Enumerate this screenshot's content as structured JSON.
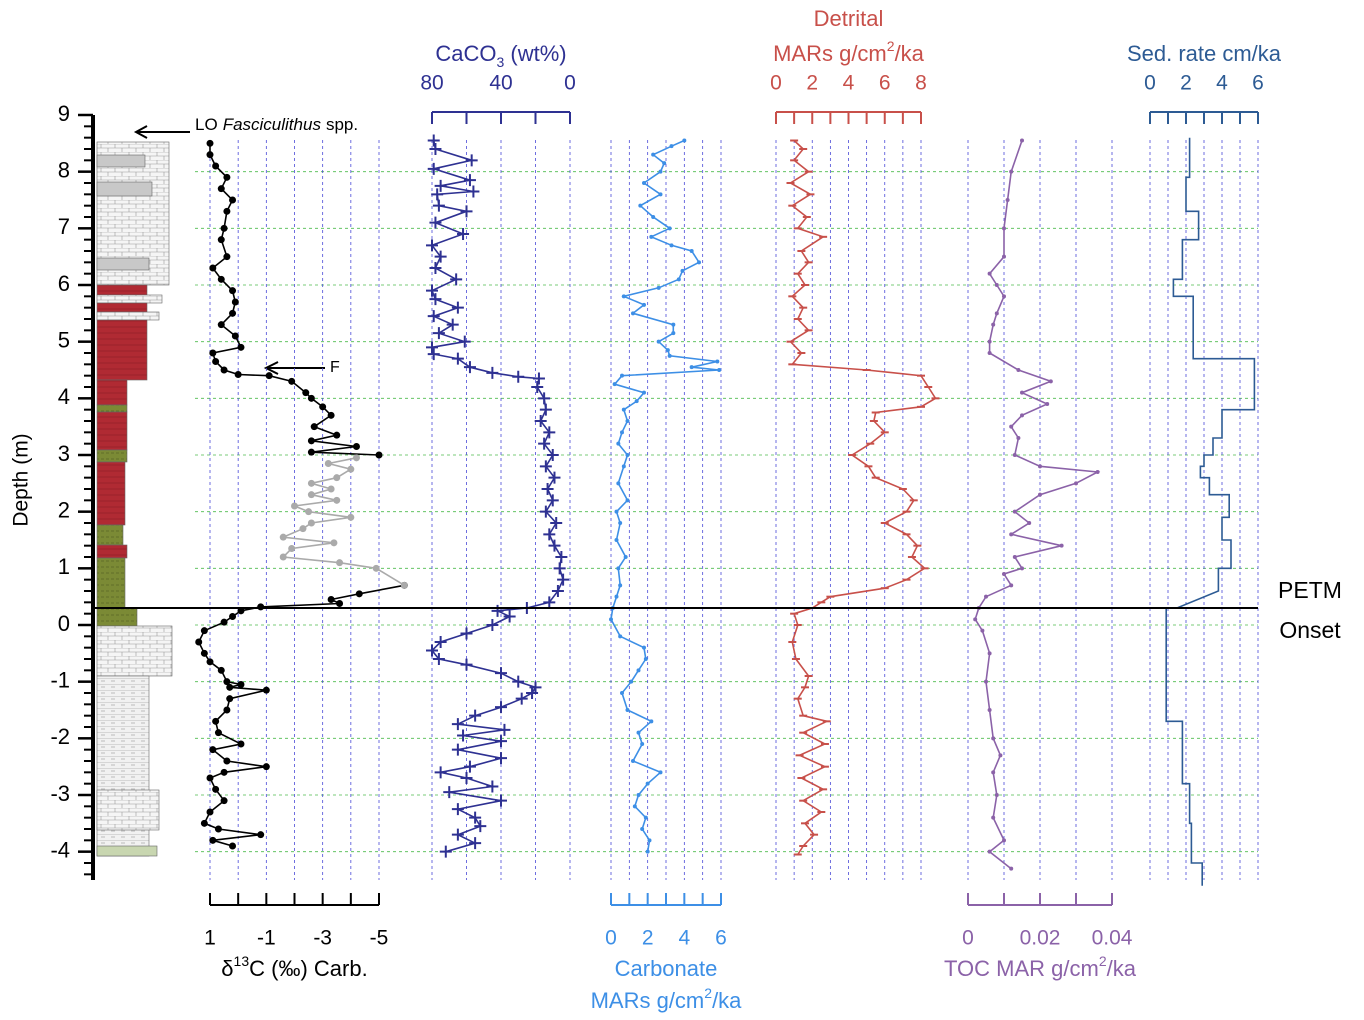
{
  "chart_data": [
    {
      "type": "line",
      "color": "#000000",
      "title": [
        [
          "δ",
          {
            "text": "13",
            "script": "super"
          },
          "C (‰) Carb."
        ]
      ],
      "ylabel": "Depth (m)",
      "ylim": [
        -4.5,
        9
      ],
      "yticks": [
        -4,
        -3,
        -2,
        -1,
        0,
        1,
        2,
        3,
        4,
        5,
        6,
        7,
        8,
        9
      ],
      "xlim": [
        1,
        -5
      ],
      "xticks": [
        1,
        -1,
        -3,
        -5
      ],
      "axis_position": "bottom",
      "grid": true,
      "annotations": {
        "lo": [
          "LO",
          "Fasciculithus",
          "spp."
        ],
        "f": "F",
        "onset": {
          "depth": 0.3,
          "label": [
            "PETM",
            "Onset"
          ]
        }
      },
      "series": [
        {
          "color": "#000000",
          "marker": "circle",
          "depth": [
            8.5,
            8.3,
            8.1,
            7.9,
            7.7,
            7.5,
            7.3,
            7.0,
            6.8,
            6.5,
            6.3,
            6.1,
            5.9,
            5.7,
            5.5,
            5.3,
            5.1,
            4.9,
            4.8,
            4.65,
            4.5,
            4.42,
            4.4,
            4.3,
            4.1,
            4.0,
            3.85,
            3.7,
            3.5,
            3.35,
            3.25,
            3.15,
            3.05,
            3.0,
            null,
            0.7,
            0.55,
            0.45,
            0.38,
            0.32,
            0.25,
            0.15,
            0.05,
            -0.1,
            -0.3,
            -0.5,
            -0.65,
            -0.8,
            -1.0,
            -1.05,
            -1.1,
            -1.15,
            -1.3,
            -1.5,
            -1.7,
            -1.9,
            -2.1,
            -2.2,
            -2.4,
            -2.5,
            -2.6,
            -2.7,
            -2.9,
            -3.1,
            -3.3,
            -3.5,
            -3.6,
            -3.7,
            -3.8,
            -3.9
          ],
          "values": [
            1.0,
            1.0,
            0.8,
            0.4,
            0.6,
            0.2,
            0.4,
            0.5,
            0.6,
            0.4,
            0.9,
            0.6,
            0.2,
            0.1,
            0.2,
            0.6,
            0.1,
            -0.1,
            0.9,
            0.8,
            0.5,
            0.0,
            -1.1,
            -1.9,
            -2.4,
            -2.6,
            -3.0,
            -3.3,
            -2.7,
            -3.5,
            -2.6,
            -4.2,
            -2.6,
            -5.0,
            null,
            -5.9,
            -4.3,
            -3.3,
            -3.6,
            -0.8,
            -0.1,
            0.2,
            0.5,
            1.2,
            1.4,
            1.2,
            1.0,
            0.6,
            0.4,
            -0.1,
            0.3,
            -1.0,
            0.3,
            0.4,
            0.8,
            0.7,
            -0.1,
            0.9,
            0.4,
            -1.0,
            0.5,
            1.0,
            0.8,
            0.5,
            1.0,
            1.2,
            0.7,
            -0.8,
            0.9,
            0.2
          ]
        },
        {
          "color": "#aaaaaa",
          "marker": "circle",
          "depth": [
            2.95,
            2.85,
            2.75,
            2.6,
            2.5,
            2.4,
            2.3,
            2.2,
            2.1,
            2.0,
            1.9,
            1.8,
            1.7,
            1.55,
            1.45,
            1.35,
            1.2,
            1.1,
            1.0,
            0.7
          ],
          "values": [
            -4.2,
            -3.2,
            -4.0,
            -3.5,
            -2.6,
            -3.3,
            -2.6,
            -3.5,
            -2.0,
            -2.5,
            -4.0,
            -2.6,
            -2.3,
            -1.6,
            -3.4,
            -1.9,
            -1.6,
            -3.6,
            -4.9,
            -5.9
          ]
        }
      ]
    },
    {
      "type": "line",
      "color": "#2e3192",
      "title": [
        [
          "CaCO",
          {
            "text": "3",
            "script": "sub"
          },
          " (wt%)"
        ]
      ],
      "xlim": [
        80,
        0
      ],
      "xticks": [
        80,
        40,
        0
      ],
      "axis_position": "top",
      "grid": true,
      "series": [
        {
          "color": "#2e3192",
          "marker": "plus",
          "depth": [
            8.55,
            8.4,
            8.2,
            8.05,
            7.85,
            7.75,
            7.65,
            7.6,
            7.4,
            7.3,
            7.1,
            6.9,
            6.7,
            6.5,
            6.3,
            6.1,
            5.9,
            5.75,
            5.6,
            5.45,
            5.3,
            5.15,
            5.0,
            4.9,
            4.78,
            4.7,
            4.55,
            4.45,
            4.38,
            4.35,
            4.2,
            4.0,
            3.8,
            3.6,
            3.4,
            3.2,
            3.0,
            2.8,
            2.6,
            2.4,
            2.2,
            2.0,
            1.8,
            1.6,
            1.4,
            1.2,
            1.0,
            0.8,
            0.6,
            0.4,
            0.3,
            0.25,
            0.15,
            0.0,
            -0.15,
            -0.3,
            -0.45,
            -0.6,
            -0.7,
            -0.85,
            -1.0,
            -1.1,
            -1.2,
            -1.3,
            -1.45,
            -1.6,
            -1.75,
            -1.85,
            -1.95,
            -2.05,
            -2.2,
            -2.35,
            -2.5,
            -2.6,
            -2.7,
            -2.85,
            -2.95,
            -3.1,
            -3.25,
            -3.4,
            -3.55,
            -3.7,
            -3.85,
            -4.0
          ],
          "values": [
            79,
            78,
            57,
            79,
            58,
            75,
            56,
            77,
            76,
            60,
            78,
            62,
            80,
            75,
            78,
            66,
            80,
            78,
            65,
            79,
            68,
            76,
            61,
            80,
            79,
            65,
            58,
            45,
            30,
            18,
            19,
            15,
            14,
            17,
            12,
            15,
            10,
            14,
            9,
            13,
            10,
            14,
            8,
            12,
            9,
            5,
            6,
            4,
            7,
            12,
            25,
            42,
            35,
            45,
            60,
            75,
            80,
            76,
            60,
            40,
            30,
            20,
            22,
            28,
            40,
            55,
            65,
            38,
            62,
            40,
            65,
            40,
            58,
            75,
            60,
            45,
            70,
            40,
            65,
            55,
            52,
            65,
            55,
            72
          ]
        }
      ]
    },
    {
      "type": "line",
      "color": "#3d8fe6",
      "title": [
        [
          "Carbonate"
        ],
        [
          "MARs g/cm",
          {
            "text": "2",
            "script": "super"
          },
          "/ka"
        ]
      ],
      "xlim": [
        0,
        6
      ],
      "xticks": [
        0,
        2,
        4,
        6
      ],
      "axis_position": "bottom",
      "grid": true,
      "series": [
        {
          "color": "#3d8fe6",
          "marker": "dot",
          "depth": [
            8.55,
            8.45,
            8.3,
            8.15,
            8.0,
            7.8,
            7.6,
            7.4,
            7.2,
            7.0,
            6.85,
            6.7,
            6.6,
            6.4,
            6.25,
            6.1,
            5.95,
            5.8,
            5.65,
            5.5,
            5.3,
            5.15,
            5.0,
            4.85,
            4.75,
            4.65,
            4.55,
            4.5,
            4.4,
            4.25,
            4.1,
            3.95,
            3.8,
            3.6,
            3.4,
            3.2,
            3.0,
            2.8,
            2.5,
            2.2,
            2.0,
            1.8,
            1.5,
            1.2,
            1.0,
            0.7,
            0.5,
            0.3,
            0.1,
            -0.2,
            -0.4,
            -0.6,
            -0.8,
            -1.0,
            -1.2,
            -1.5,
            -1.7,
            -1.9,
            -2.1,
            -2.4,
            -2.6,
            -2.8,
            -3.0,
            -3.2,
            -3.4,
            -3.6,
            -3.8,
            -4.0
          ],
          "values": [
            4.0,
            3.3,
            2.3,
            2.9,
            2.7,
            1.8,
            2.7,
            1.6,
            2.3,
            3.2,
            2.2,
            3.3,
            4.4,
            4.8,
            3.9,
            3.7,
            2.6,
            0.7,
            1.8,
            1.2,
            3.4,
            3.4,
            2.6,
            3.1,
            3.2,
            5.8,
            4.4,
            5.9,
            0.6,
            0.2,
            1.8,
            1.4,
            0.7,
            0.9,
            0.6,
            0.4,
            0.9,
            0.7,
            0.4,
            0.9,
            0.3,
            0.5,
            0.3,
            0.8,
            0.4,
            0.5,
            0.3,
            0.1,
            0.0,
            0.5,
            1.8,
            1.9,
            1.5,
            1.1,
            0.6,
            0.9,
            2.2,
            1.5,
            1.7,
            1.2,
            2.7,
            2.0,
            1.5,
            1.3,
            1.9,
            1.7,
            2.1,
            2.0
          ]
        }
      ]
    },
    {
      "type": "line",
      "color": "#c8504a",
      "title": [
        [
          "Detrital"
        ],
        [
          "MARs g/cm",
          {
            "text": "2",
            "script": "super"
          },
          "/ka"
        ]
      ],
      "xlim": [
        0,
        8
      ],
      "xticks": [
        0,
        2,
        4,
        6,
        8
      ],
      "axis_position": "top",
      "grid": true,
      "series": [
        {
          "color": "#c8504a",
          "marker": "tick",
          "depth": [
            8.55,
            8.4,
            8.2,
            8.0,
            7.8,
            7.6,
            7.4,
            7.2,
            7.0,
            6.85,
            6.6,
            6.4,
            6.2,
            6.0,
            5.8,
            5.6,
            5.4,
            5.2,
            5.0,
            4.8,
            4.6,
            4.5,
            4.4,
            4.2,
            4.0,
            3.85,
            3.75,
            3.6,
            3.4,
            3.2,
            3.0,
            2.8,
            2.6,
            2.4,
            2.2,
            2.0,
            1.8,
            1.6,
            1.4,
            1.2,
            1.0,
            0.8,
            0.65,
            0.5,
            0.4,
            0.3,
            0.2,
            0.0,
            -0.3,
            -0.6,
            -0.9,
            -1.1,
            -1.3,
            -1.6,
            -1.7,
            -1.9,
            -2.1,
            -2.3,
            -2.5,
            -2.7,
            -2.9,
            -3.1,
            -3.3,
            -3.5,
            -3.7,
            -3.9,
            -4.05
          ],
          "values": [
            1.0,
            1.5,
            1.0,
            1.8,
            0.8,
            1.9,
            0.9,
            1.7,
            1.2,
            2.6,
            1.4,
            1.8,
            1.2,
            1.6,
            0.9,
            1.5,
            1.2,
            1.8,
            0.8,
            1.4,
            0.9,
            5.0,
            8.0,
            8.4,
            8.8,
            8.0,
            5.5,
            5.4,
            6.0,
            5.2,
            4.2,
            5.1,
            5.5,
            7.0,
            7.6,
            7.2,
            6.0,
            7.2,
            7.8,
            7.5,
            8.2,
            7.2,
            6.0,
            3.0,
            2.5,
            2.0,
            1.0,
            1.2,
            0.9,
            1.1,
            1.8,
            1.6,
            1.2,
            1.5,
            2.8,
            1.5,
            2.7,
            1.3,
            2.7,
            1.4,
            2.6,
            1.5,
            2.5,
            1.6,
            2.1,
            1.5,
            1.2
          ]
        }
      ]
    },
    {
      "type": "line",
      "color": "#8b62a8",
      "title": [
        [
          "TOC MAR g/cm",
          {
            "text": "2",
            "script": "super"
          },
          "/ka"
        ]
      ],
      "xlim": [
        0,
        0.04
      ],
      "xticks": [
        0,
        0.02,
        0.04
      ],
      "axis_position": "bottom",
      "grid": true,
      "series": [
        {
          "color": "#8b62a8",
          "marker": "dot",
          "depth": [
            8.55,
            8.0,
            7.5,
            7.0,
            6.5,
            6.2,
            6.0,
            5.8,
            5.5,
            5.3,
            5.0,
            4.8,
            4.5,
            4.3,
            4.1,
            3.9,
            3.7,
            3.5,
            3.3,
            3.0,
            2.8,
            2.7,
            2.5,
            2.3,
            2.0,
            1.8,
            1.6,
            1.4,
            1.2,
            1.0,
            0.9,
            0.7,
            0.5,
            0.3,
            0.1,
            -0.1,
            -0.5,
            -1.0,
            -1.5,
            -2.0,
            -2.3,
            -2.6,
            -3.0,
            -3.4,
            -3.8,
            -4.0,
            -4.3
          ],
          "values": [
            0.015,
            0.012,
            0.011,
            0.01,
            0.01,
            0.006,
            0.008,
            0.01,
            0.008,
            0.007,
            0.006,
            0.006,
            0.014,
            0.023,
            0.015,
            0.022,
            0.015,
            0.012,
            0.014,
            0.013,
            0.02,
            0.036,
            0.03,
            0.02,
            0.013,
            0.017,
            0.012,
            0.026,
            0.013,
            0.015,
            0.01,
            0.012,
            0.005,
            0.003,
            0.002,
            0.004,
            0.006,
            0.005,
            0.006,
            0.007,
            0.009,
            0.007,
            0.008,
            0.007,
            0.01,
            0.006,
            0.012
          ]
        }
      ]
    },
    {
      "type": "line",
      "color": "#2d5b94",
      "title": [
        [
          "Sed. rate cm/ka"
        ]
      ],
      "xlim": [
        0,
        6
      ],
      "xticks": [
        0,
        2,
        4,
        6
      ],
      "axis_position": "top",
      "grid": true,
      "series": [
        {
          "color": "#2d5b94",
          "marker": "none",
          "depth": [
            8.6,
            7.9,
            7.9,
            7.3,
            7.3,
            6.8,
            6.8,
            6.1,
            6.1,
            5.8,
            5.8,
            4.7,
            4.7,
            3.8,
            3.8,
            3.3,
            3.3,
            3.0,
            3.0,
            2.8,
            2.8,
            2.6,
            2.6,
            2.3,
            2.3,
            1.9,
            1.9,
            1.5,
            1.5,
            1.0,
            1.0,
            0.6,
            0.3,
            0.3,
            -1.7,
            -1.7,
            -2.8,
            -2.8,
            -3.5,
            -3.5,
            -4.2,
            -4.2,
            -4.6
          ],
          "values": [
            2.2,
            2.2,
            2.0,
            2.0,
            2.7,
            2.7,
            1.8,
            1.8,
            1.3,
            1.3,
            2.4,
            2.4,
            5.8,
            5.8,
            4.0,
            4.0,
            3.5,
            3.5,
            3.0,
            3.0,
            2.8,
            2.8,
            3.3,
            3.3,
            4.4,
            4.4,
            4.0,
            4.0,
            4.5,
            4.5,
            3.8,
            3.8,
            1.5,
            0.9,
            0.9,
            1.8,
            1.8,
            2.2,
            2.2,
            2.3,
            2.3,
            2.9,
            2.9
          ]
        }
      ]
    }
  ]
}
